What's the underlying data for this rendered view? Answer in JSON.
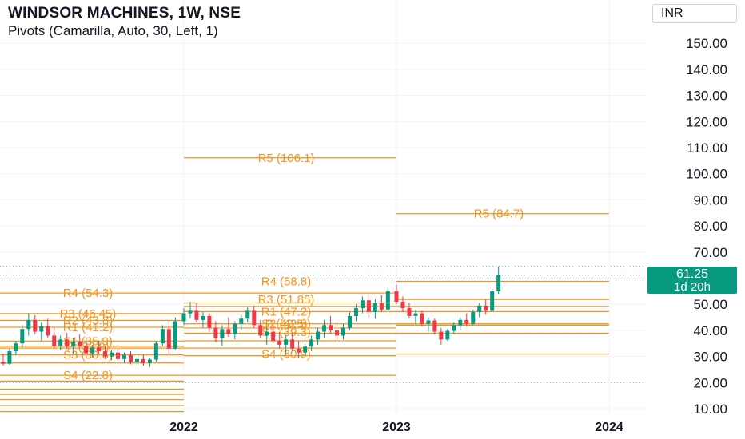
{
  "header": {
    "title": "WINDSOR MACHINES, 1W, NSE",
    "indicator": "Pivots (Camarilla, Auto, 30, Left, 1)",
    "currency": "INR"
  },
  "last_price": {
    "value": "61.25",
    "countdown": "1d 20h"
  },
  "colors": {
    "up": "#089981",
    "down": "#f23645",
    "pivot": "#f7931a",
    "grid": "#f0f3fa",
    "text": "#131722"
  },
  "chart_data": {
    "type": "candlestick",
    "x_ticks": [
      "2022",
      "2023",
      "2024"
    ],
    "y_ticks": [
      "10.00",
      "20.00",
      "30.00",
      "40.00",
      "50.00",
      "60.00",
      "70.00",
      "80.00",
      "90.00",
      "100.00",
      "110.00",
      "120.00",
      "130.00",
      "140.00",
      "150.00"
    ],
    "y_range": [
      8,
      156
    ],
    "last_close": 61.25,
    "dotted_lines": [
      20,
      61.25,
      64.5
    ],
    "pivot_periods": [
      {
        "start": "2021-01",
        "end": "2022-01",
        "labels": [
          {
            "text": "R4 (54.3)",
            "y": 54.3
          },
          {
            "text": "R3 (46.45)",
            "y": 46.45
          },
          {
            "text": "R2 (43.8)",
            "y": 43.8
          },
          {
            "text": "R1 (41.2)",
            "y": 41.2
          },
          {
            "text": "S1 (35.9)",
            "y": 35.9
          },
          {
            "text": "P (33.9)",
            "y": 33.9
          },
          {
            "text": "S3 (30.6)",
            "y": 30.6
          },
          {
            "text": "S4 (22.8)",
            "y": 22.8
          }
        ],
        "lines": [
          54.3,
          46.45,
          43.8,
          41.2,
          35.9,
          33.9,
          33.2,
          30.6,
          27.5,
          22.8,
          20.6,
          17.5,
          15.5,
          13.5,
          11.2,
          8.9
        ]
      },
      {
        "start": "2022-01",
        "end": "2023-01",
        "labels": [
          {
            "text": "R5 (106.1)",
            "y": 106.1
          },
          {
            "text": "R4 (58.8)",
            "y": 58.8
          },
          {
            "text": "R3 (51.85)",
            "y": 51.85
          },
          {
            "text": "R1 (47.2)",
            "y": 47.2
          },
          {
            "text": "P (42.5)",
            "y": 42.5
          },
          {
            "text": "S2 (42.5)",
            "y": 42.5
          },
          {
            "text": "S1 (39.3)",
            "y": 39.3
          },
          {
            "text": "S4 (30.9)",
            "y": 30.9
          }
        ],
        "lines": [
          106.1,
          54.3,
          50.5,
          49.2,
          47.2,
          42.5,
          40.9,
          38.9,
          36.0,
          33.2,
          30.3,
          22.8
        ]
      },
      {
        "start": "2023-01",
        "end": "2024-01",
        "labels": [
          {
            "text": "R5 (84.7)",
            "y": 84.7
          }
        ],
        "lines": [
          84.7,
          58.8,
          51.85,
          49.2,
          47.2,
          42.5,
          42.0,
          38.9,
          30.9
        ]
      }
    ],
    "candles_sampled": [
      [
        2021.0,
        18.5,
        21.0,
        17.5,
        20.5
      ],
      [
        2021.03,
        20.5,
        23.0,
        19.8,
        22.6
      ],
      [
        2021.06,
        22.6,
        24.5,
        21.5,
        23.5
      ],
      [
        2021.09,
        23.5,
        27.0,
        23.0,
        26.2
      ],
      [
        2021.12,
        26.2,
        29.0,
        25.0,
        28.0
      ],
      [
        2021.15,
        28.0,
        31.0,
        26.5,
        27.2
      ],
      [
        2021.18,
        27.2,
        33.0,
        26.8,
        32.0
      ],
      [
        2021.21,
        32.0,
        36.0,
        30.5,
        35.0
      ],
      [
        2021.24,
        35.0,
        42.0,
        33.5,
        40.5
      ],
      [
        2021.27,
        40.5,
        46.5,
        38.0,
        44.0
      ],
      [
        2021.3,
        44.0,
        45.8,
        38.5,
        39.5
      ],
      [
        2021.33,
        39.5,
        43.0,
        36.0,
        41.5
      ],
      [
        2021.36,
        41.5,
        44.5,
        37.0,
        38.0
      ],
      [
        2021.39,
        38.0,
        41.0,
        33.0,
        34.0
      ],
      [
        2021.42,
        34.0,
        38.0,
        32.5,
        36.5
      ],
      [
        2021.45,
        36.5,
        39.0,
        33.0,
        33.8
      ],
      [
        2021.48,
        33.8,
        37.0,
        31.0,
        35.5
      ],
      [
        2021.51,
        35.5,
        38.5,
        33.5,
        34.0
      ],
      [
        2021.54,
        34.0,
        36.5,
        30.0,
        31.2
      ],
      [
        2021.57,
        31.2,
        34.5,
        29.5,
        33.5
      ],
      [
        2021.6,
        33.5,
        36.0,
        31.0,
        32.0
      ],
      [
        2021.63,
        32.0,
        34.0,
        29.0,
        30.0
      ],
      [
        2021.66,
        30.0,
        32.5,
        28.5,
        31.5
      ],
      [
        2021.69,
        31.5,
        33.0,
        28.5,
        29.0
      ],
      [
        2021.72,
        29.0,
        31.5,
        27.5,
        30.5
      ],
      [
        2021.75,
        30.5,
        32.0,
        27.0,
        28.0
      ],
      [
        2021.78,
        28.0,
        30.0,
        26.5,
        29.0
      ],
      [
        2021.81,
        29.0,
        30.5,
        26.5,
        27.5
      ],
      [
        2021.84,
        27.5,
        29.5,
        26.0,
        28.8
      ],
      [
        2021.87,
        28.8,
        36.0,
        28.0,
        35.0
      ],
      [
        2021.9,
        35.0,
        42.0,
        34.0,
        40.5
      ],
      [
        2021.93,
        40.5,
        44.0,
        31.0,
        33.0
      ],
      [
        2021.96,
        33.0,
        45.0,
        32.5,
        43.5
      ],
      [
        2022.0,
        43.5,
        48.5,
        42.0,
        46.5
      ],
      [
        2022.03,
        46.5,
        51.0,
        44.5,
        47.5
      ],
      [
        2022.06,
        47.5,
        50.5,
        43.0,
        44.0
      ],
      [
        2022.09,
        44.0,
        47.0,
        41.0,
        45.5
      ],
      [
        2022.12,
        45.5,
        46.5,
        39.5,
        41.0
      ],
      [
        2022.15,
        41.0,
        43.5,
        35.5,
        37.0
      ],
      [
        2022.18,
        37.0,
        42.0,
        34.0,
        40.5
      ],
      [
        2022.21,
        40.5,
        45.0,
        37.5,
        38.5
      ],
      [
        2022.24,
        38.5,
        43.5,
        36.5,
        42.5
      ],
      [
        2022.27,
        42.5,
        46.0,
        40.0,
        44.5
      ],
      [
        2022.3,
        44.5,
        49.0,
        43.0,
        47.5
      ],
      [
        2022.33,
        47.5,
        49.5,
        41.0,
        42.0
      ],
      [
        2022.36,
        42.0,
        44.0,
        37.0,
        38.0
      ],
      [
        2022.39,
        38.0,
        41.0,
        34.5,
        39.5
      ],
      [
        2022.42,
        39.5,
        42.0,
        35.0,
        36.0
      ],
      [
        2022.45,
        36.0,
        39.5,
        33.0,
        34.5
      ],
      [
        2022.48,
        34.5,
        38.0,
        30.5,
        36.5
      ],
      [
        2022.51,
        36.5,
        39.0,
        32.0,
        33.0
      ],
      [
        2022.54,
        33.0,
        36.0,
        29.5,
        31.5
      ],
      [
        2022.57,
        31.5,
        35.0,
        30.0,
        33.8
      ],
      [
        2022.6,
        33.8,
        38.0,
        32.0,
        36.5
      ],
      [
        2022.63,
        36.5,
        41.0,
        34.5,
        39.5
      ],
      [
        2022.66,
        39.5,
        44.0,
        37.0,
        42.0
      ],
      [
        2022.69,
        42.0,
        45.5,
        39.0,
        40.0
      ],
      [
        2022.72,
        40.0,
        43.0,
        36.0,
        38.0
      ],
      [
        2022.75,
        38.0,
        42.5,
        36.5,
        41.0
      ],
      [
        2022.78,
        41.0,
        47.0,
        40.0,
        45.5
      ],
      [
        2022.81,
        45.5,
        50.0,
        43.5,
        48.5
      ],
      [
        2022.84,
        48.5,
        53.0,
        46.5,
        51.5
      ],
      [
        2022.87,
        51.5,
        54.0,
        45.0,
        47.0
      ],
      [
        2022.9,
        47.0,
        52.0,
        44.5,
        50.5
      ],
      [
        2022.93,
        50.5,
        53.5,
        47.0,
        48.0
      ],
      [
        2022.96,
        48.0,
        56.5,
        47.5,
        55.0
      ],
      [
        2023.0,
        55.0,
        57.5,
        50.0,
        51.0
      ],
      [
        2023.03,
        51.0,
        53.0,
        47.0,
        48.5
      ],
      [
        2023.06,
        48.5,
        50.5,
        44.5,
        45.5
      ],
      [
        2023.09,
        45.5,
        48.0,
        42.5,
        46.5
      ],
      [
        2023.12,
        46.5,
        47.5,
        41.5,
        42.5
      ],
      [
        2023.15,
        42.5,
        45.0,
        39.5,
        43.8
      ],
      [
        2023.18,
        43.8,
        44.5,
        38.5,
        39.5
      ],
      [
        2023.21,
        39.5,
        41.0,
        34.5,
        36.5
      ],
      [
        2023.24,
        36.5,
        40.5,
        36.0,
        39.8
      ],
      [
        2023.27,
        39.8,
        43.0,
        38.5,
        42.0
      ],
      [
        2023.3,
        42.0,
        45.0,
        40.0,
        44.0
      ],
      [
        2023.33,
        44.0,
        46.5,
        41.5,
        42.5
      ],
      [
        2023.36,
        42.5,
        48.0,
        42.0,
        47.0
      ],
      [
        2023.39,
        47.0,
        50.5,
        45.0,
        49.5
      ],
      [
        2023.42,
        49.5,
        52.0,
        46.0,
        47.5
      ],
      [
        2023.45,
        47.5,
        56.0,
        47.0,
        55.0
      ],
      [
        2023.48,
        55.0,
        64.5,
        54.0,
        61.25
      ]
    ]
  }
}
